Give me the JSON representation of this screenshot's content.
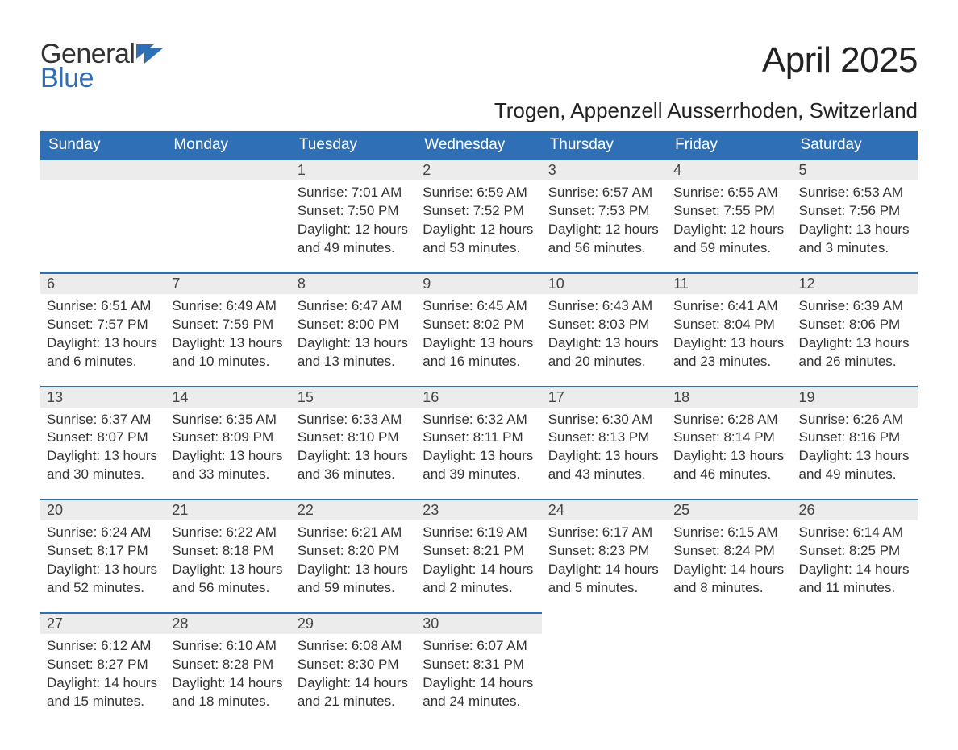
{
  "logo": {
    "line1": "General",
    "line2": "Blue",
    "accent_color": "#2f6fb5",
    "text_color": "#333333"
  },
  "title": "April 2025",
  "location": "Trogen, Appenzell Ausserrhoden, Switzerland",
  "colors": {
    "header_bg": "#2f6fb5",
    "header_text": "#ffffff",
    "daynum_bg": "#ececec",
    "border_top": "#2f6fb5",
    "body_text": "#333333",
    "background": "#ffffff"
  },
  "labels": {
    "sunrise": "Sunrise:",
    "sunset": "Sunset:",
    "daylight": "Daylight:"
  },
  "day_headers": [
    "Sunday",
    "Monday",
    "Tuesday",
    "Wednesday",
    "Thursday",
    "Friday",
    "Saturday"
  ],
  "weeks": [
    [
      null,
      null,
      {
        "n": "1",
        "sunrise": "7:01 AM",
        "sunset": "7:50 PM",
        "daylight": "12 hours and 49 minutes."
      },
      {
        "n": "2",
        "sunrise": "6:59 AM",
        "sunset": "7:52 PM",
        "daylight": "12 hours and 53 minutes."
      },
      {
        "n": "3",
        "sunrise": "6:57 AM",
        "sunset": "7:53 PM",
        "daylight": "12 hours and 56 minutes."
      },
      {
        "n": "4",
        "sunrise": "6:55 AM",
        "sunset": "7:55 PM",
        "daylight": "12 hours and 59 minutes."
      },
      {
        "n": "5",
        "sunrise": "6:53 AM",
        "sunset": "7:56 PM",
        "daylight": "13 hours and 3 minutes."
      }
    ],
    [
      {
        "n": "6",
        "sunrise": "6:51 AM",
        "sunset": "7:57 PM",
        "daylight": "13 hours and 6 minutes."
      },
      {
        "n": "7",
        "sunrise": "6:49 AM",
        "sunset": "7:59 PM",
        "daylight": "13 hours and 10 minutes."
      },
      {
        "n": "8",
        "sunrise": "6:47 AM",
        "sunset": "8:00 PM",
        "daylight": "13 hours and 13 minutes."
      },
      {
        "n": "9",
        "sunrise": "6:45 AM",
        "sunset": "8:02 PM",
        "daylight": "13 hours and 16 minutes."
      },
      {
        "n": "10",
        "sunrise": "6:43 AM",
        "sunset": "8:03 PM",
        "daylight": "13 hours and 20 minutes."
      },
      {
        "n": "11",
        "sunrise": "6:41 AM",
        "sunset": "8:04 PM",
        "daylight": "13 hours and 23 minutes."
      },
      {
        "n": "12",
        "sunrise": "6:39 AM",
        "sunset": "8:06 PM",
        "daylight": "13 hours and 26 minutes."
      }
    ],
    [
      {
        "n": "13",
        "sunrise": "6:37 AM",
        "sunset": "8:07 PM",
        "daylight": "13 hours and 30 minutes."
      },
      {
        "n": "14",
        "sunrise": "6:35 AM",
        "sunset": "8:09 PM",
        "daylight": "13 hours and 33 minutes."
      },
      {
        "n": "15",
        "sunrise": "6:33 AM",
        "sunset": "8:10 PM",
        "daylight": "13 hours and 36 minutes."
      },
      {
        "n": "16",
        "sunrise": "6:32 AM",
        "sunset": "8:11 PM",
        "daylight": "13 hours and 39 minutes."
      },
      {
        "n": "17",
        "sunrise": "6:30 AM",
        "sunset": "8:13 PM",
        "daylight": "13 hours and 43 minutes."
      },
      {
        "n": "18",
        "sunrise": "6:28 AM",
        "sunset": "8:14 PM",
        "daylight": "13 hours and 46 minutes."
      },
      {
        "n": "19",
        "sunrise": "6:26 AM",
        "sunset": "8:16 PM",
        "daylight": "13 hours and 49 minutes."
      }
    ],
    [
      {
        "n": "20",
        "sunrise": "6:24 AM",
        "sunset": "8:17 PM",
        "daylight": "13 hours and 52 minutes."
      },
      {
        "n": "21",
        "sunrise": "6:22 AM",
        "sunset": "8:18 PM",
        "daylight": "13 hours and 56 minutes."
      },
      {
        "n": "22",
        "sunrise": "6:21 AM",
        "sunset": "8:20 PM",
        "daylight": "13 hours and 59 minutes."
      },
      {
        "n": "23",
        "sunrise": "6:19 AM",
        "sunset": "8:21 PM",
        "daylight": "14 hours and 2 minutes."
      },
      {
        "n": "24",
        "sunrise": "6:17 AM",
        "sunset": "8:23 PM",
        "daylight": "14 hours and 5 minutes."
      },
      {
        "n": "25",
        "sunrise": "6:15 AM",
        "sunset": "8:24 PM",
        "daylight": "14 hours and 8 minutes."
      },
      {
        "n": "26",
        "sunrise": "6:14 AM",
        "sunset": "8:25 PM",
        "daylight": "14 hours and 11 minutes."
      }
    ],
    [
      {
        "n": "27",
        "sunrise": "6:12 AM",
        "sunset": "8:27 PM",
        "daylight": "14 hours and 15 minutes."
      },
      {
        "n": "28",
        "sunrise": "6:10 AM",
        "sunset": "8:28 PM",
        "daylight": "14 hours and 18 minutes."
      },
      {
        "n": "29",
        "sunrise": "6:08 AM",
        "sunset": "8:30 PM",
        "daylight": "14 hours and 21 minutes."
      },
      {
        "n": "30",
        "sunrise": "6:07 AM",
        "sunset": "8:31 PM",
        "daylight": "14 hours and 24 minutes."
      },
      null,
      null,
      null
    ]
  ]
}
